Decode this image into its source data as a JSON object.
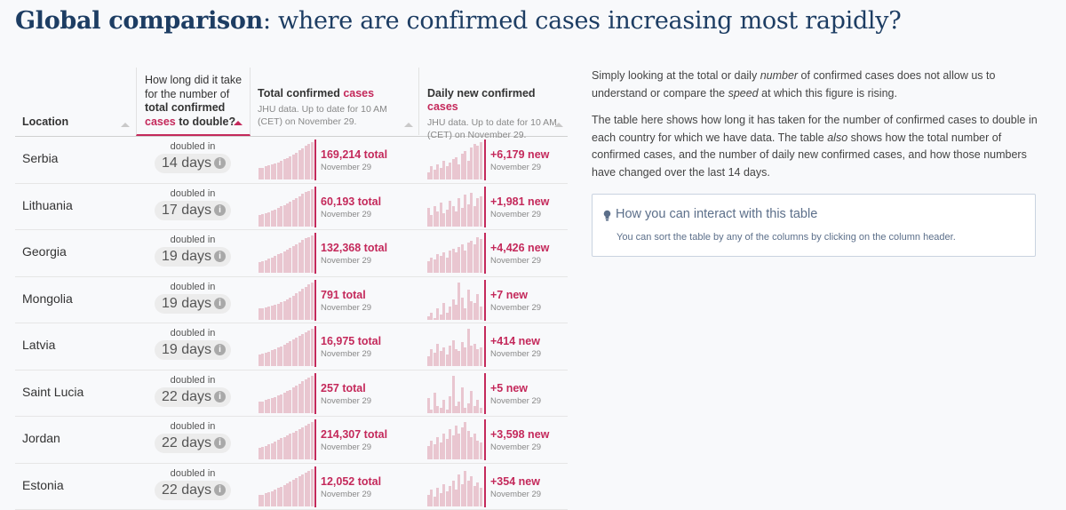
{
  "headline": {
    "bold": "Global comparison",
    "rest": ": where are confirmed cases increasing most rapidly?"
  },
  "table": {
    "columns": {
      "location": "Location",
      "doubling": {
        "line1": "How long did it take",
        "line2": "for the number of",
        "line3": "total confirmed",
        "line4_accent": "cases",
        "line4_rest": " to double?"
      },
      "total": {
        "title": "Total confirmed ",
        "title_accent": "cases",
        "sub": "JHU data. Up to date for 10 AM (CET) on November 29."
      },
      "daily": {
        "title": "Daily new confirmed ",
        "title_accent": "cases",
        "sub": "JHU data. Up to date for 10 AM (CET) on November 29."
      }
    },
    "doubled_label": "doubled in",
    "info_glyph": "i",
    "rows": [
      {
        "location": "Serbia",
        "doubling": "14 days",
        "total": "169,214 total",
        "total_date": "November 29",
        "new": "+6,179 new",
        "new_date": "November 29",
        "total_trend": [
          0.3,
          0.32,
          0.35,
          0.37,
          0.4,
          0.43,
          0.46,
          0.5,
          0.54,
          0.58,
          0.62,
          0.67,
          0.72,
          0.78,
          0.84,
          0.9,
          0.95,
          1.0
        ],
        "daily_trend": [
          0.2,
          0.35,
          0.25,
          0.4,
          0.3,
          0.5,
          0.35,
          0.45,
          0.55,
          0.6,
          0.4,
          0.7,
          0.75,
          0.5,
          0.85,
          0.95,
          0.9,
          1.0
        ]
      },
      {
        "location": "Lithuania",
        "doubling": "17 days",
        "total": "60,193 total",
        "total_date": "November 29",
        "new": "+1,981 new",
        "new_date": "November 29",
        "total_trend": [
          0.3,
          0.33,
          0.36,
          0.39,
          0.42,
          0.46,
          0.5,
          0.54,
          0.58,
          0.62,
          0.67,
          0.72,
          0.77,
          0.82,
          0.87,
          0.92,
          0.96,
          1.0
        ],
        "daily_trend": [
          0.5,
          0.3,
          0.55,
          0.4,
          0.65,
          0.35,
          0.45,
          0.7,
          0.55,
          0.4,
          0.75,
          0.5,
          0.85,
          0.6,
          0.9,
          0.55,
          0.75,
          0.8
        ]
      },
      {
        "location": "Georgia",
        "doubling": "19 days",
        "total": "132,368 total",
        "total_date": "November 29",
        "new": "+4,426 new",
        "new_date": "November 29",
        "total_trend": [
          0.28,
          0.31,
          0.34,
          0.37,
          0.41,
          0.45,
          0.49,
          0.53,
          0.57,
          0.62,
          0.67,
          0.72,
          0.77,
          0.82,
          0.87,
          0.92,
          0.96,
          1.0
        ],
        "daily_trend": [
          0.3,
          0.4,
          0.35,
          0.5,
          0.45,
          0.55,
          0.4,
          0.6,
          0.65,
          0.55,
          0.7,
          0.75,
          0.6,
          0.8,
          0.85,
          0.75,
          0.95,
          0.9
        ]
      },
      {
        "location": "Mongolia",
        "doubling": "19 days",
        "total": "791 total",
        "total_date": "November 29",
        "new": "+7 new",
        "new_date": "November 29",
        "total_trend": [
          0.3,
          0.32,
          0.34,
          0.36,
          0.38,
          0.41,
          0.44,
          0.47,
          0.51,
          0.55,
          0.6,
          0.65,
          0.71,
          0.77,
          0.83,
          0.89,
          0.95,
          1.0
        ],
        "daily_trend": [
          0.1,
          0.2,
          0.05,
          0.3,
          0.15,
          0.45,
          0.2,
          0.35,
          0.55,
          0.4,
          1.0,
          0.6,
          0.3,
          0.8,
          0.5,
          0.45,
          0.7,
          0.35
        ]
      },
      {
        "location": "Latvia",
        "doubling": "19 days",
        "total": "16,975 total",
        "total_date": "November 29",
        "new": "+414 new",
        "new_date": "November 29",
        "total_trend": [
          0.3,
          0.33,
          0.36,
          0.39,
          0.42,
          0.45,
          0.49,
          0.53,
          0.57,
          0.61,
          0.66,
          0.71,
          0.76,
          0.81,
          0.86,
          0.91,
          0.96,
          1.0
        ],
        "daily_trend": [
          0.25,
          0.45,
          0.35,
          0.6,
          0.4,
          0.5,
          0.3,
          0.55,
          0.7,
          0.45,
          0.4,
          0.65,
          0.5,
          1.0,
          0.55,
          0.6,
          0.45,
          0.5
        ]
      },
      {
        "location": "Saint Lucia",
        "doubling": "22 days",
        "total": "257 total",
        "total_date": "November 29",
        "new": "+5 new",
        "new_date": "November 29",
        "total_trend": [
          0.3,
          0.32,
          0.35,
          0.38,
          0.41,
          0.44,
          0.47,
          0.51,
          0.55,
          0.59,
          0.63,
          0.68,
          0.73,
          0.79,
          0.85,
          0.91,
          0.96,
          1.0
        ],
        "daily_trend": [
          0.4,
          0.1,
          0.55,
          0.2,
          0.15,
          0.35,
          0.1,
          0.45,
          1.0,
          0.2,
          0.3,
          0.7,
          0.15,
          0.25,
          0.6,
          0.2,
          0.35,
          0.15
        ]
      },
      {
        "location": "Jordan",
        "doubling": "22 days",
        "total": "214,307 total",
        "total_date": "November 29",
        "new": "+3,598 new",
        "new_date": "November 29",
        "total_trend": [
          0.3,
          0.33,
          0.36,
          0.4,
          0.44,
          0.48,
          0.52,
          0.56,
          0.6,
          0.64,
          0.68,
          0.72,
          0.76,
          0.8,
          0.85,
          0.9,
          0.95,
          1.0
        ],
        "daily_trend": [
          0.35,
          0.5,
          0.4,
          0.6,
          0.45,
          0.7,
          0.55,
          0.8,
          0.65,
          0.9,
          0.7,
          0.85,
          1.0,
          0.75,
          0.6,
          0.7,
          0.5,
          0.45
        ]
      },
      {
        "location": "Estonia",
        "doubling": "22 days",
        "total": "12,052 total",
        "total_date": "November 29",
        "new": "+354 new",
        "new_date": "November 29",
        "total_trend": [
          0.3,
          0.32,
          0.35,
          0.38,
          0.41,
          0.45,
          0.49,
          0.53,
          0.57,
          0.61,
          0.66,
          0.71,
          0.76,
          0.81,
          0.86,
          0.91,
          0.96,
          1.0
        ],
        "daily_trend": [
          0.3,
          0.45,
          0.25,
          0.5,
          0.35,
          0.6,
          0.4,
          0.55,
          0.7,
          0.45,
          0.85,
          0.6,
          0.95,
          0.7,
          0.8,
          0.55,
          0.65,
          0.5
        ]
      }
    ]
  },
  "side": {
    "p1_a": "Simply looking at the total or daily ",
    "p1_em1": "number",
    "p1_b": " of confirmed cases does not allow us to understand or compare the ",
    "p1_em2": "speed",
    "p1_c": " at which this figure is rising.",
    "p2_a": "The table here shows how long it has taken for the number of confirmed cases to double in each country for which we have data. The table ",
    "p2_em": "also",
    "p2_b": " shows how the total number of confirmed cases, and the number of daily new confirmed cases, and how those numbers have changed over the last 14 days."
  },
  "interact": {
    "icon": "lightbulb-icon",
    "title": "How you can interact with this table",
    "text": "You can sort the table by any of the columns by clicking on the column header."
  },
  "colors": {
    "accent": "#c4295b",
    "bar": "#e9c6d0",
    "headline": "#1d3d63"
  }
}
